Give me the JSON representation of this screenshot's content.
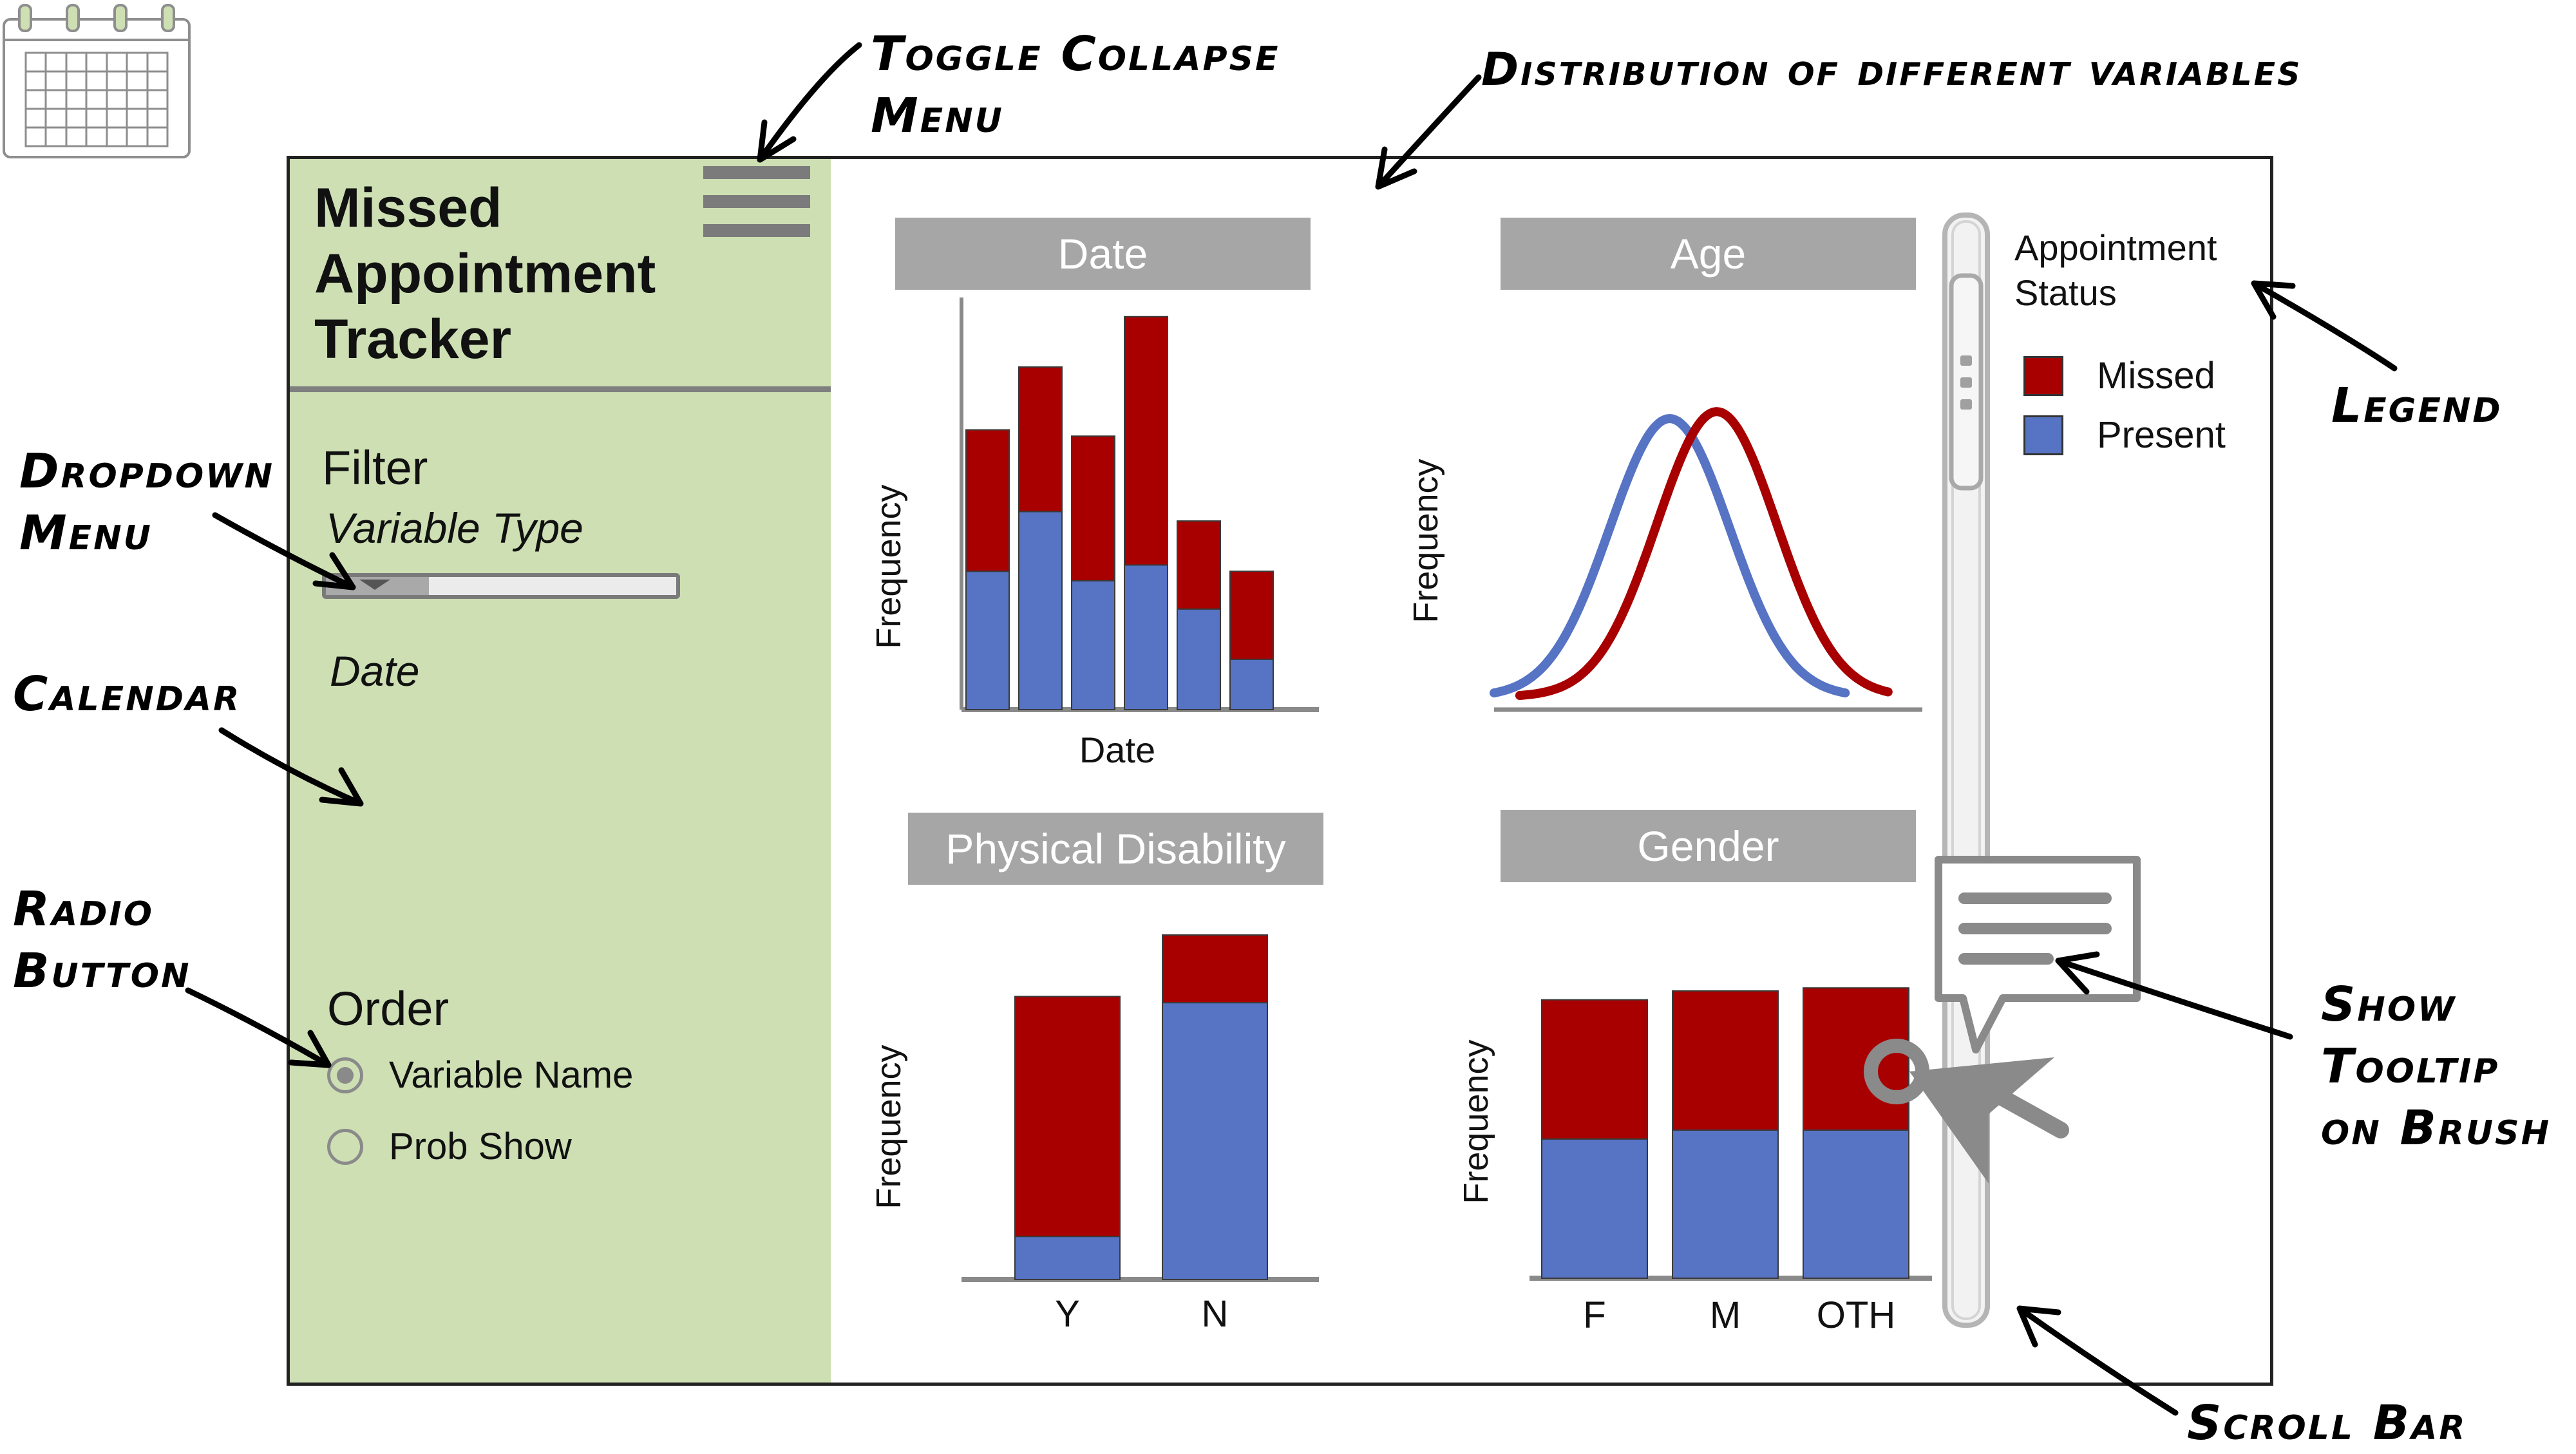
{
  "annotations": {
    "toggle_collapse_menu": [
      "Toggle Collapse",
      "Menu"
    ],
    "distribution": "Distribution of different variables",
    "dropdown_menu": [
      "Dropdown",
      "Menu"
    ],
    "calendar": "Calendar",
    "radio_button": [
      "Radio",
      "Button"
    ],
    "legend": "Legend",
    "show_tooltip": [
      "Show",
      "Tooltip",
      "on Brush"
    ],
    "scroll_bar": "Scroll Bar"
  },
  "sidebar": {
    "title_lines": [
      "Missed",
      "Appointment",
      "Tracker"
    ],
    "filter_label": "Filter",
    "variable_type_label": "Variable Type",
    "date_label": "Date",
    "order_label": "Order",
    "order_options": [
      {
        "label": "Variable Name",
        "selected": true
      },
      {
        "label": "Prob Show",
        "selected": false
      }
    ]
  },
  "legend": {
    "title": "Appointment Status",
    "items": [
      {
        "label": "Missed",
        "color": "#a80000"
      },
      {
        "label": "Present",
        "color": "#5673c4"
      }
    ]
  },
  "colors": {
    "missed": "#a80000",
    "present": "#5673c4",
    "header": "#a6a6a6",
    "sidebar": "#cddfb3"
  },
  "chart_data": [
    {
      "type": "bar",
      "stacked": true,
      "header": "Date",
      "xlabel": "Date",
      "ylabel": "Frequency",
      "categories": [
        "",
        "",
        "",
        "",
        "",
        ""
      ],
      "series": [
        {
          "name": "Present",
          "color": "#5673c4",
          "values": [
            44,
            63,
            41,
            46,
            32,
            16
          ]
        },
        {
          "name": "Missed",
          "color": "#a80000",
          "values": [
            45,
            46,
            46,
            79,
            28,
            28
          ]
        }
      ],
      "ylim": [
        0,
        127
      ]
    },
    {
      "type": "line",
      "header": "Age",
      "xlabel": "",
      "ylabel": "Frequency",
      "series": [
        {
          "name": "Present",
          "color": "#5673c4",
          "mean": 0.41,
          "sd": 0.14,
          "peak": 0.8
        },
        {
          "name": "Missed",
          "color": "#a80000",
          "mean": 0.52,
          "sd": 0.14,
          "peak": 0.82
        }
      ]
    },
    {
      "type": "bar",
      "stacked": true,
      "header": "Physical Disability",
      "xlabel": "",
      "ylabel": "Frequency",
      "categories": [
        "Y",
        "N"
      ],
      "series": [
        {
          "name": "Present",
          "color": "#5673c4",
          "values": [
            14,
            90
          ]
        },
        {
          "name": "Missed",
          "color": "#a80000",
          "values": [
            78,
            22
          ]
        }
      ],
      "ylim": [
        0,
        112
      ]
    },
    {
      "type": "bar",
      "stacked": true,
      "header": "Gender",
      "xlabel": "",
      "ylabel": "Frequency",
      "categories": [
        "F",
        "M",
        "OTH"
      ],
      "series": [
        {
          "name": "Present",
          "color": "#5673c4",
          "values": [
            47,
            50,
            50
          ]
        },
        {
          "name": "Missed",
          "color": "#a80000",
          "values": [
            47,
            47,
            48
          ]
        }
      ],
      "ylim": [
        0,
        100
      ]
    }
  ]
}
